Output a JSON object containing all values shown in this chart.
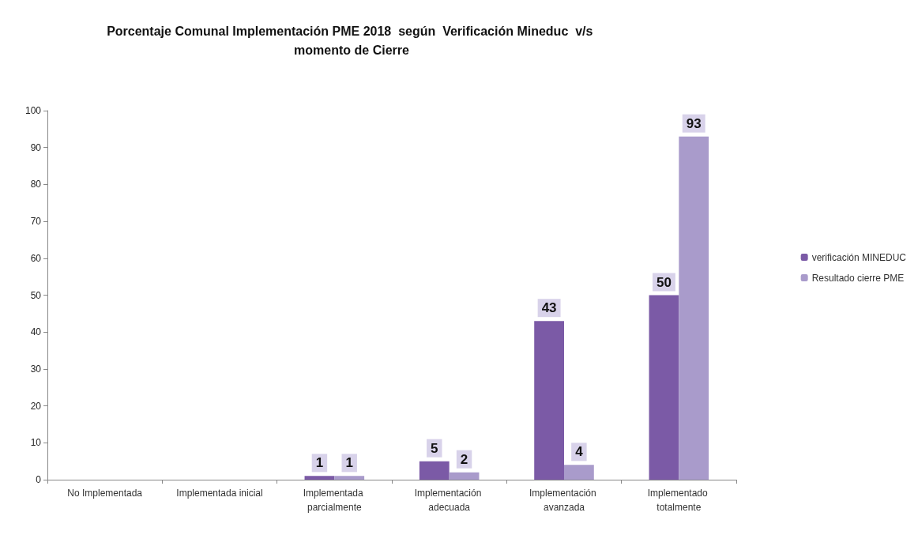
{
  "chart_data": {
    "type": "bar",
    "title": "Porcentaje Comunal Implementación PME 2018  según  Verificación Mineduc  v/s momento de Cierre",
    "categories": [
      "No Implementada",
      "Implementada inicial",
      "Implementada parcialmente",
      "Implementación adecuada",
      "Implementación avanzada",
      "Implementado totalmente"
    ],
    "series": [
      {
        "name": "verificación MINEDUC",
        "color": "#7b5aa6",
        "values": [
          null,
          null,
          1,
          5,
          43,
          50
        ]
      },
      {
        "name": "Resultado cierre PME",
        "color": "#a99bcb",
        "values": [
          null,
          null,
          1,
          2,
          4,
          93
        ]
      }
    ],
    "ylim": [
      0,
      100
    ],
    "yticks": [
      0,
      10,
      20,
      30,
      40,
      50,
      60,
      70,
      80,
      90,
      100
    ],
    "data_labels": true,
    "grid": false,
    "legend": "right"
  }
}
